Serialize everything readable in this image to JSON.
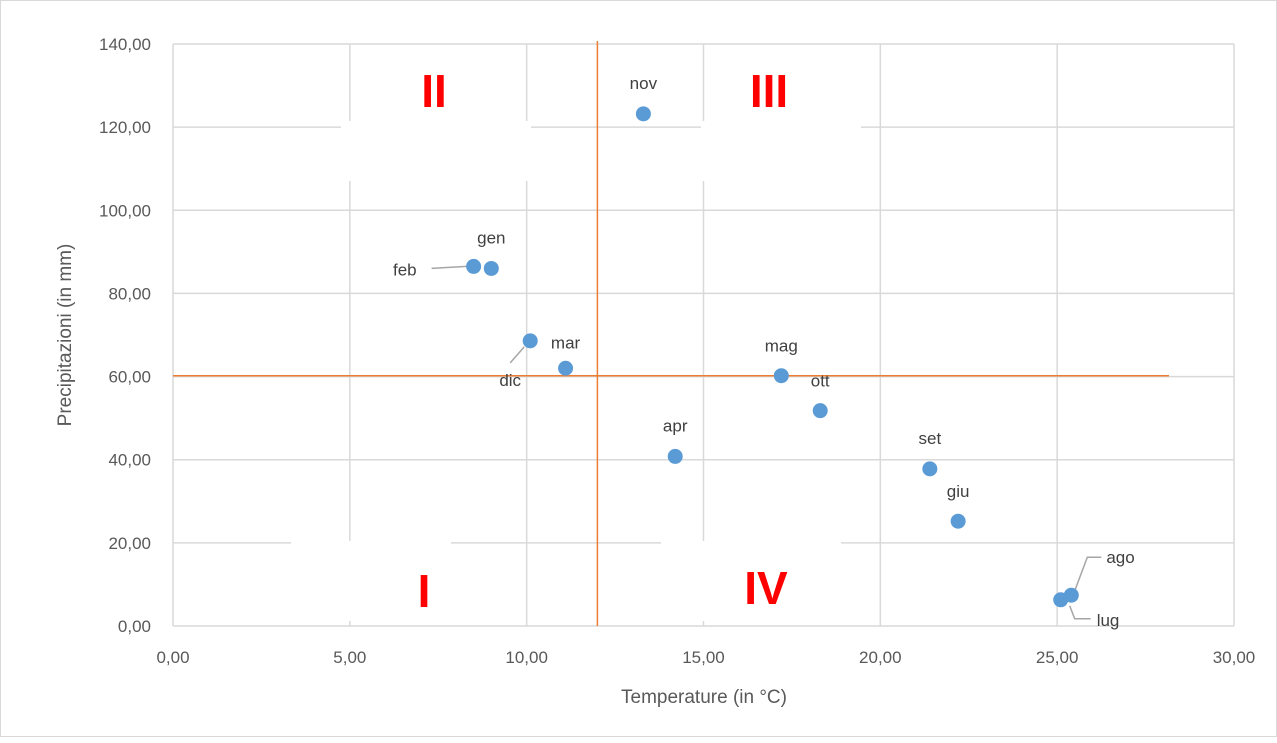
{
  "chart_data": {
    "type": "scatter",
    "title": "",
    "xlabel": "Temperature (in °C)",
    "ylabel": "Precipitazioni (in mm)",
    "xlim": [
      0,
      30
    ],
    "ylim": [
      0,
      140
    ],
    "xticks": [
      "0,00",
      "5,00",
      "10,00",
      "15,00",
      "20,00",
      "25,00",
      "30,00"
    ],
    "yticks": [
      "0,00",
      "20,00",
      "40,00",
      "60,00",
      "80,00",
      "100,00",
      "120,00",
      "140,00"
    ],
    "grid": true,
    "point_color": "#5b9bd5",
    "reference_line_color": "#ed7d31",
    "reference_lines": {
      "x": 12,
      "y": 60.2
    },
    "points": [
      {
        "label": "gen",
        "x": 9.0,
        "y": 86.0
      },
      {
        "label": "feb",
        "x": 8.5,
        "y": 86.5
      },
      {
        "label": "mar",
        "x": 11.1,
        "y": 62.0
      },
      {
        "label": "apr",
        "x": 14.2,
        "y": 40.8
      },
      {
        "label": "mag",
        "x": 17.2,
        "y": 60.2
      },
      {
        "label": "giu",
        "x": 22.2,
        "y": 25.2
      },
      {
        "label": "lug",
        "x": 25.1,
        "y": 6.3
      },
      {
        "label": "ago",
        "x": 25.4,
        "y": 7.4
      },
      {
        "label": "set",
        "x": 21.4,
        "y": 37.8
      },
      {
        "label": "ott",
        "x": 18.3,
        "y": 51.8
      },
      {
        "label": "nov",
        "x": 13.3,
        "y": 123.2
      },
      {
        "label": "dic",
        "x": 10.1,
        "y": 68.6
      }
    ],
    "quadrant_labels": [
      "I",
      "II",
      "III",
      "IV"
    ],
    "quadrant_color": "#ff0000"
  }
}
